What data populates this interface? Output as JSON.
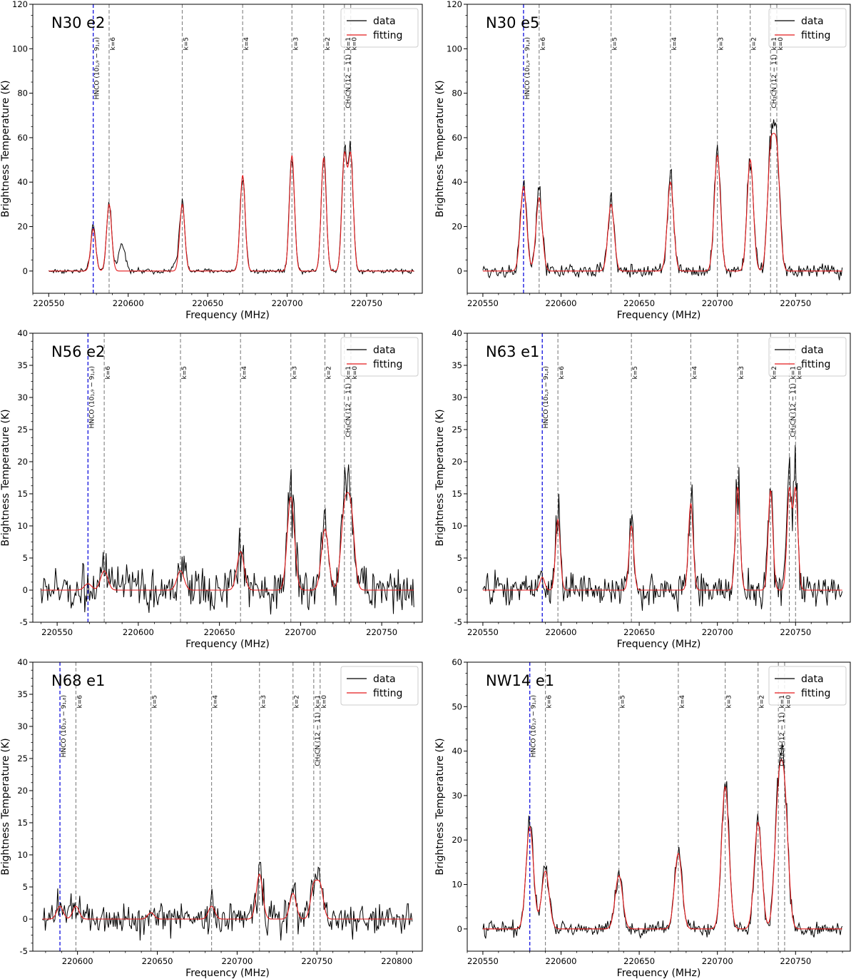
{
  "figure": {
    "xlabel": "Frequency (MHz)",
    "ylabel": "Brightness Temperature (K)",
    "legend": {
      "data_label": "data",
      "fit_label": "fitting"
    },
    "colors": {
      "data": "#000000",
      "fit": "#e31a1c",
      "hnco_marker": "#1f1fe0",
      "ch3cn_marker": "#808080"
    }
  },
  "chart_data": [
    {
      "type": "line",
      "title": "N30 e2",
      "xlim": [
        220540,
        220785
      ],
      "ylim": [
        -10,
        120
      ],
      "xticks": [
        220550,
        220600,
        220650,
        220700,
        220750
      ],
      "yticks": [
        0,
        20,
        40,
        60,
        80,
        100,
        120
      ],
      "hnco": {
        "freq": 220578,
        "label": "HNCO (10₁,₉ − 9₁,₈)"
      },
      "ch3cn_label": "CH₃CN (12 − 11)",
      "components": [
        {
          "k": "k=6",
          "freq": 220588,
          "amp": 30
        },
        {
          "k": "k=5",
          "freq": 220634,
          "amp": 30
        },
        {
          "k": "k=4",
          "freq": 220672,
          "amp": 43
        },
        {
          "k": "k=3",
          "freq": 220703,
          "amp": 52
        },
        {
          "k": "k=2",
          "freq": 220723,
          "amp": 51
        },
        {
          "k": "k=1",
          "freq": 220736,
          "amp": 51
        },
        {
          "k": "k=0",
          "freq": 220740,
          "amp": 51
        }
      ],
      "hnco_amp": 19,
      "width_mhz": 1.6,
      "extra_features": [
        {
          "freq": 220596,
          "amp": 12,
          "width": 2.2
        },
        {
          "freq": 220630,
          "amp": 3,
          "width": 2
        }
      ],
      "data_range": [
        220550,
        220780
      ],
      "noise": 0.8,
      "excess": 0.12
    },
    {
      "type": "line",
      "title": "N30 e5",
      "xlim": [
        220540,
        220785
      ],
      "ylim": [
        -10,
        120
      ],
      "xticks": [
        220550,
        220600,
        220650,
        220700,
        220750
      ],
      "yticks": [
        0,
        20,
        40,
        60,
        80,
        100,
        120
      ],
      "hnco": {
        "freq": 220576,
        "label": "HNCO (10₁,₉ − 9₁,₈)"
      },
      "ch3cn_label": "CH₃CN (12 − 11)",
      "components": [
        {
          "k": "k=6",
          "freq": 220586,
          "amp": 33
        },
        {
          "k": "k=5",
          "freq": 220632,
          "amp": 30
        },
        {
          "k": "k=4",
          "freq": 220670,
          "amp": 40
        },
        {
          "k": "k=3",
          "freq": 220700,
          "amp": 52
        },
        {
          "k": "k=2",
          "freq": 220721,
          "amp": 50
        },
        {
          "k": "k=1",
          "freq": 220734,
          "amp": 51
        },
        {
          "k": "k=0",
          "freq": 220738,
          "amp": 51
        }
      ],
      "hnco_amp": 38,
      "width_mhz": 2.0,
      "extra_features": [],
      "data_range": [
        220550,
        220780
      ],
      "noise": 2.3,
      "excess": 0.15
    },
    {
      "type": "line",
      "title": "N56 e2",
      "xlim": [
        220535,
        220775
      ],
      "ylim": [
        -5,
        40
      ],
      "xticks": [
        220550,
        220600,
        220650,
        220700,
        220750
      ],
      "yticks": [
        -5,
        0,
        5,
        10,
        15,
        20,
        25,
        30,
        35,
        40
      ],
      "hnco": {
        "freq": 220569,
        "label": "HNCO (10₁,₉ − 9₁,₈)"
      },
      "ch3cn_label": "CH₃CN (12 − 11)",
      "components": [
        {
          "k": "k=6",
          "freq": 220579,
          "amp": 3
        },
        {
          "k": "k=5",
          "freq": 220626,
          "amp": 3
        },
        {
          "k": "k=4",
          "freq": 220663,
          "amp": 6
        },
        {
          "k": "k=3",
          "freq": 220694,
          "amp": 14.5
        },
        {
          "k": "k=2",
          "freq": 220715,
          "amp": 9.5
        },
        {
          "k": "k=1",
          "freq": 220727,
          "amp": 11.5
        },
        {
          "k": "k=0",
          "freq": 220731,
          "amp": 11.5
        }
      ],
      "hnco_amp": 1,
      "width_mhz": 2.2,
      "extra_features": [],
      "data_range": [
        220540,
        220770
      ],
      "noise": 2.4,
      "excess": 0.35
    },
    {
      "type": "line",
      "title": "N63 e1",
      "xlim": [
        220540,
        220785
      ],
      "ylim": [
        -5,
        40
      ],
      "xticks": [
        220550,
        220600,
        220650,
        220700,
        220750
      ],
      "yticks": [
        -5,
        0,
        5,
        10,
        15,
        20,
        25,
        30,
        35,
        40
      ],
      "hnco": {
        "freq": 220588,
        "label": "HNCO (10₁,₉ − 9₁,₈)"
      },
      "ch3cn_label": "CH₃CN (12 − 11)",
      "components": [
        {
          "k": "k=6",
          "freq": 220598,
          "amp": 11
        },
        {
          "k": "k=5",
          "freq": 220645,
          "amp": 10
        },
        {
          "k": "k=4",
          "freq": 220683,
          "amp": 13.5
        },
        {
          "k": "k=3",
          "freq": 220713,
          "amp": 16
        },
        {
          "k": "k=2",
          "freq": 220734,
          "amp": 15.5
        },
        {
          "k": "k=1",
          "freq": 220746,
          "amp": 15.5
        },
        {
          "k": "k=0",
          "freq": 220750,
          "amp": 15.5
        }
      ],
      "hnco_amp": 2,
      "width_mhz": 1.5,
      "extra_features": [],
      "data_range": [
        220550,
        220780
      ],
      "noise": 1.8,
      "excess": 0.3
    },
    {
      "type": "line",
      "title": "N68 e1",
      "xlim": [
        220572,
        220816
      ],
      "ylim": [
        -5,
        40
      ],
      "xticks": [
        220600,
        220650,
        220700,
        220750,
        220800
      ],
      "yticks": [
        -5,
        0,
        5,
        10,
        15,
        20,
        25,
        30,
        35,
        40
      ],
      "hnco": {
        "freq": 220589,
        "label": "HNCO (10₁,₉ − 9₁,₈)"
      },
      "ch3cn_label": "CH₃CN (12 − 11)",
      "components": [
        {
          "k": "k=6",
          "freq": 220599,
          "amp": 2
        },
        {
          "k": "k=5",
          "freq": 220646,
          "amp": 1
        },
        {
          "k": "k=4",
          "freq": 220684,
          "amp": 2
        },
        {
          "k": "k=3",
          "freq": 220714,
          "amp": 7
        },
        {
          "k": "k=2",
          "freq": 220735,
          "amp": 4
        },
        {
          "k": "k=1",
          "freq": 220748,
          "amp": 5
        },
        {
          "k": "k=0",
          "freq": 220752,
          "amp": 5
        }
      ],
      "hnco_amp": 2,
      "width_mhz": 2.0,
      "extra_features": [],
      "data_range": [
        220578,
        220810
      ],
      "noise": 1.9,
      "excess": 0.3
    },
    {
      "type": "line",
      "title": "NW14 e1",
      "xlim": [
        220540,
        220785
      ],
      "ylim": [
        -5,
        60
      ],
      "xticks": [
        220550,
        220600,
        220650,
        220700,
        220750
      ],
      "yticks": [
        0,
        10,
        20,
        30,
        40,
        50,
        60
      ],
      "hnco": {
        "freq": 220580,
        "label": "HNCO (10₁,₉ − 9₁,₈)"
      },
      "ch3cn_label": "CH₃CN (12 − 11)",
      "components": [
        {
          "k": "k=6",
          "freq": 220590,
          "amp": 13
        },
        {
          "k": "k=5",
          "freq": 220637,
          "amp": 12
        },
        {
          "k": "k=4",
          "freq": 220675,
          "amp": 17
        },
        {
          "k": "k=3",
          "freq": 220705,
          "amp": 32
        },
        {
          "k": "k=2",
          "freq": 220726,
          "amp": 24
        },
        {
          "k": "k=1",
          "freq": 220739,
          "amp": 27
        },
        {
          "k": "k=0",
          "freq": 220743,
          "amp": 27
        }
      ],
      "hnco_amp": 23,
      "width_mhz": 2.4,
      "extra_features": [],
      "data_range": [
        220550,
        220780
      ],
      "noise": 1.2,
      "excess": 0.12
    }
  ]
}
